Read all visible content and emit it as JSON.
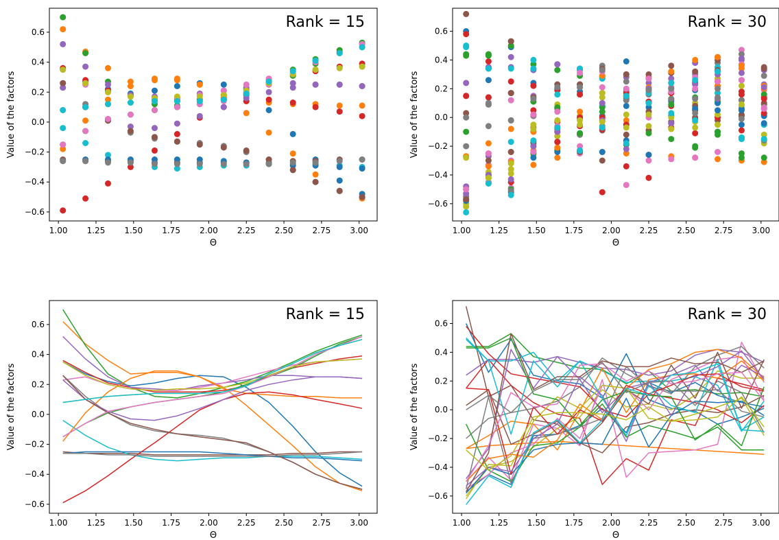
{
  "colors": [
    "#1f77b4",
    "#ff7f0e",
    "#2ca02c",
    "#d62728",
    "#9467bd",
    "#8c564b",
    "#e377c2",
    "#7f7f7f",
    "#bcbd22",
    "#17becf"
  ],
  "chart_data": [
    {
      "type": "scatter",
      "annotation": "Rank = 15",
      "xlabel": "Θ",
      "ylabel": "Value of the factors",
      "xlim": [
        0.94,
        3.12
      ],
      "ylim": [
        -0.66,
        0.76
      ],
      "xticks": [
        "1.00",
        "1.25",
        "1.50",
        "1.75",
        "2.00",
        "2.25",
        "2.50",
        "2.75",
        "3.00"
      ],
      "yticks": [
        "−0.6",
        "−0.4",
        "−0.2",
        "0.0",
        "0.2",
        "0.4",
        "0.6"
      ],
      "x": [
        1.03,
        1.18,
        1.33,
        1.48,
        1.64,
        1.79,
        1.94,
        2.1,
        2.25,
        2.4,
        2.56,
        2.71,
        2.87,
        3.02
      ],
      "series": [
        {
          "values": [
            0.35,
            0.27,
            0.22,
            0.19,
            0.21,
            0.24,
            0.26,
            0.25,
            0.18,
            0.08,
            -0.08,
            -0.25,
            -0.39,
            -0.48
          ]
        },
        {
          "values": [
            0.62,
            0.47,
            0.36,
            0.27,
            0.28,
            0.28,
            0.25,
            0.18,
            0.06,
            -0.07,
            -0.21,
            -0.35,
            -0.46,
            -0.51
          ]
        },
        {
          "values": [
            0.7,
            0.46,
            0.27,
            0.18,
            0.12,
            0.11,
            0.14,
            0.18,
            0.22,
            0.28,
            0.35,
            0.42,
            0.48,
            0.53
          ]
        },
        {
          "values": [
            0.36,
            0.28,
            0.21,
            0.18,
            0.15,
            0.15,
            0.15,
            0.16,
            0.19,
            0.26,
            0.31,
            0.34,
            0.37,
            0.39
          ]
        },
        {
          "values": [
            0.52,
            0.37,
            0.25,
            0.18,
            0.17,
            0.16,
            0.19,
            0.21,
            0.23,
            0.26,
            0.26,
            0.25,
            0.25,
            0.24
          ]
        },
        {
          "values": [
            -0.25,
            -0.26,
            -0.26,
            -0.26,
            -0.27,
            -0.27,
            -0.27,
            -0.27,
            -0.27,
            -0.27,
            -0.26,
            -0.26,
            -0.25,
            -0.25
          ]
        },
        {
          "values": [
            0.23,
            0.25,
            0.2,
            0.17,
            0.16,
            0.16,
            0.18,
            0.21,
            0.25,
            0.29,
            0.33,
            0.35,
            0.36,
            0.37
          ]
        },
        {
          "values": [
            0.26,
            0.12,
            0.01,
            -0.07,
            -0.11,
            -0.13,
            -0.14,
            -0.16,
            -0.2,
            -0.25,
            -0.32,
            -0.4,
            -0.46,
            -0.5
          ]
        },
        {
          "values": [
            0.08,
            0.1,
            0.12,
            0.13,
            0.14,
            0.14,
            0.14,
            0.15,
            0.19,
            0.27,
            0.34,
            0.41,
            0.46,
            0.5
          ]
        },
        {
          "values": [
            -0.04,
            -0.14,
            -0.22,
            -0.27,
            -0.3,
            -0.31,
            -0.3,
            -0.29,
            -0.29,
            -0.28,
            -0.28,
            -0.28,
            -0.29,
            -0.3
          ]
        },
        {
          "values": [
            -0.26,
            -0.25,
            -0.25,
            -0.25,
            -0.25,
            -0.25,
            -0.25,
            -0.26,
            -0.27,
            -0.28,
            -0.29,
            -0.29,
            -0.3,
            -0.31
          ]
        },
        {
          "values": [
            -0.18,
            0.01,
            0.15,
            0.24,
            0.29,
            0.29,
            0.25,
            0.17,
            0.14,
            0.13,
            0.12,
            0.12,
            0.11,
            0.11
          ]
        },
        {
          "values": [
            -0.15,
            -0.06,
            0.01,
            0.05,
            0.08,
            0.1,
            0.12,
            0.15,
            0.2,
            0.25,
            0.31,
            0.39,
            0.47,
            0.52
          ]
        },
        {
          "values": [
            -0.59,
            -0.51,
            -0.41,
            -0.3,
            -0.19,
            -0.08,
            0.03,
            0.1,
            0.14,
            0.15,
            0.13,
            0.1,
            0.07,
            0.04
          ]
        },
        {
          "values": [
            0.23,
            0.1,
            0.02,
            -0.03,
            -0.04,
            -0.01,
            0.04,
            0.1,
            0.16,
            0.2,
            0.23,
            0.25,
            0.25,
            0.24
          ]
        },
        {
          "values": [
            0.26,
            0.1,
            0.01,
            -0.06,
            -0.1,
            -0.13,
            -0.15,
            -0.17,
            -0.19,
            -0.25,
            -0.32,
            -0.4,
            -0.46,
            -0.5
          ]
        },
        {
          "values": [
            -0.15,
            -0.06,
            0.02,
            0.05,
            0.08,
            0.1,
            0.12,
            0.14,
            0.19,
            0.25,
            0.32,
            0.4,
            0.46,
            0.52
          ]
        },
        {
          "values": [
            -0.26,
            -0.26,
            -0.27,
            -0.27,
            -0.28,
            -0.28,
            -0.28,
            -0.28,
            -0.28,
            -0.28,
            -0.27,
            -0.27,
            -0.26,
            -0.25
          ]
        },
        {
          "values": [
            0.35,
            0.26,
            0.2,
            0.17,
            0.16,
            0.17,
            0.17,
            0.18,
            0.21,
            0.26,
            0.32,
            0.35,
            0.36,
            0.37
          ]
        },
        {
          "values": [
            0.08,
            0.1,
            0.12,
            0.13,
            0.14,
            0.14,
            0.14,
            0.15,
            0.19,
            0.27,
            0.34,
            0.41,
            0.46,
            0.5
          ]
        }
      ]
    },
    {
      "type": "scatter",
      "annotation": "Rank = 30",
      "xlabel": "Θ",
      "ylabel": "Value of the factors",
      "xlim": [
        0.94,
        3.12
      ],
      "ylim": [
        -0.72,
        0.76
      ],
      "xticks": [
        "1.00",
        "1.25",
        "1.50",
        "1.75",
        "2.00",
        "2.25",
        "2.50",
        "2.75",
        "3.00"
      ],
      "yticks": [
        "−0.6",
        "−0.4",
        "−0.2",
        "0.0",
        "0.2",
        "0.4",
        "0.6"
      ],
      "x": [
        1.03,
        1.18,
        1.33,
        1.48,
        1.64,
        1.79,
        1.94,
        2.1,
        2.25,
        2.4,
        2.56,
        2.71,
        2.87,
        3.02
      ],
      "series": [
        {
          "values": [
            0.6,
            0.26,
            0.49,
            0.24,
            0.2,
            0.18,
            0.08,
            0.39,
            0.07,
            0.01,
            -0.01,
            -0.1,
            -0.05,
            0.01
          ]
        },
        {
          "values": [
            -0.27,
            -0.25,
            -0.24,
            -0.23,
            -0.22,
            -0.23,
            -0.24,
            -0.25,
            -0.26,
            -0.27,
            -0.28,
            -0.29,
            -0.3,
            -0.31
          ]
        },
        {
          "values": [
            0.44,
            0.44,
            0.53,
            0.37,
            0.33,
            0.29,
            0.28,
            0.18,
            0.27,
            0.13,
            0.14,
            0.11,
            0.12,
            0.09
          ]
        },
        {
          "values": [
            0.15,
            0.35,
            0.17,
            0.05,
            -0.03,
            -0.06,
            -0.52,
            -0.34,
            -0.42,
            -0.07,
            -0.11,
            0.22,
            0.18,
            0.14
          ]
        },
        {
          "values": [
            0.24,
            0.35,
            0.35,
            0.33,
            0.37,
            0.33,
            0.29,
            0.28,
            0.24,
            0.27,
            0.38,
            0.42,
            0.4,
            0.33
          ]
        },
        {
          "values": [
            0.72,
            0.09,
            0.17,
            -0.07,
            -0.1,
            -0.23,
            -0.3,
            -0.12,
            -0.09,
            -0.03,
            0.0,
            -0.02,
            0.02,
            0.1
          ]
        },
        {
          "values": [
            -0.5,
            -0.33,
            -0.49,
            -0.1,
            -0.13,
            -0.25,
            0.21,
            -0.47,
            -0.3,
            -0.29,
            -0.28,
            -0.24,
            0.47,
            0.19
          ]
        },
        {
          "values": [
            -0.2,
            -0.06,
            -0.02,
            0.01,
            0.06,
            0.16,
            0.36,
            0.25,
            0.17,
            0.11,
            0.3,
            0.38,
            0.44,
            0.29
          ]
        },
        {
          "values": [
            -0.6,
            -0.4,
            -0.36,
            -0.26,
            -0.13,
            -0.05,
            0.14,
            0.02,
            0.04,
            0.0,
            0.1,
            0.27,
            0.22,
            0.22
          ]
        },
        {
          "values": [
            0.5,
            0.34,
            0.34,
            0.4,
            0.2,
            0.34,
            0.27,
            0.19,
            0.2,
            0.2,
            0.23,
            0.17,
            -0.15,
            0.06
          ]
        },
        {
          "values": [
            -0.57,
            -0.45,
            -0.52,
            -0.18,
            -0.17,
            -0.11,
            0.01,
            -0.16,
            0.19,
            0.12,
            0.19,
            0.1,
            0.05,
            0.02
          ]
        },
        {
          "values": [
            -0.27,
            -0.18,
            -0.08,
            -0.1,
            -0.28,
            -0.01,
            0.29,
            -0.02,
            0.21,
            0.24,
            0.25,
            0.22,
            0.34,
            0.2
          ]
        },
        {
          "values": [
            -0.1,
            -0.42,
            -0.5,
            -0.25,
            -0.23,
            -0.12,
            0.04,
            -0.19,
            -0.11,
            -0.15,
            -0.2,
            -0.12,
            -0.28,
            -0.28
          ]
        },
        {
          "values": [
            0.58,
            0.39,
            0.25,
            0.22,
            0.19,
            0.16,
            0.0,
            -0.05,
            0.11,
            0.08,
            0.05,
            0.0,
            -0.09,
            0.03
          ]
        },
        {
          "values": [
            -0.48,
            -0.27,
            0.42,
            0.15,
            0.37,
            0.21,
            -0.02,
            0.15,
            0.19,
            0.24,
            0.31,
            0.13,
            0.31,
            0.23
          ]
        },
        {
          "values": [
            0.03,
            0.14,
            -0.24,
            -0.17,
            -0.08,
            -0.24,
            -0.09,
            0.14,
            0.04,
            0.31,
            0.08,
            0.4,
            0.01,
            0.35
          ]
        },
        {
          "values": [
            -0.55,
            -0.45,
            -0.3,
            -0.24,
            -0.06,
            -0.2,
            0.17,
            0.15,
            0.0,
            0.21,
            0.28,
            0.35,
            0.37,
            0.07
          ]
        },
        {
          "values": [
            -0.55,
            0.09,
            -0.51,
            -0.2,
            -0.17,
            -0.12,
            -0.06,
            0.3,
            0.16,
            0.13,
            0.13,
            0.14,
            -0.01,
            -0.05
          ]
        },
        {
          "values": [
            -0.62,
            -0.38,
            -0.39,
            -0.08,
            0.09,
            0.01,
            0.17,
            0.15,
            -0.06,
            -0.08,
            -0.03,
            0.02,
            0.08,
            -0.18
          ]
        },
        {
          "values": [
            0.49,
            0.34,
            -0.17,
            0.34,
            0.16,
            0.34,
            0.08,
            -0.18,
            0.17,
            0.03,
            -0.02,
            0.35,
            -0.14,
            -0.05
          ]
        },
        {
          "values": [
            -0.58,
            -0.4,
            -0.45,
            -0.28,
            -0.24,
            -0.23,
            -0.24,
            0.08,
            -0.26,
            -0.04,
            0.06,
            0.05,
            0.06,
            -0.04
          ]
        },
        {
          "values": [
            -0.5,
            -0.34,
            -0.31,
            -0.33,
            -0.21,
            0.04,
            -0.07,
            0.15,
            0.28,
            0.32,
            0.4,
            0.42,
            0.36,
            0.22
          ]
        },
        {
          "values": [
            0.43,
            0.43,
            0.5,
            0.11,
            0.07,
            -0.11,
            0.07,
            0.13,
            0.1,
            0.09,
            -0.21,
            -0.1,
            -0.25,
            0.16
          ]
        },
        {
          "values": [
            0.15,
            0.14,
            -0.45,
            0.02,
            -0.17,
            0.0,
            -0.08,
            0.17,
            0.11,
            0.17,
            0.24,
            0.25,
            0.16,
            0.13
          ]
        },
        {
          "values": [
            -0.53,
            -0.4,
            -0.43,
            -0.2,
            -0.1,
            0.23,
            0.1,
            -0.22,
            0.2,
            -0.04,
            0.23,
            0.3,
            0.41,
            0.21
          ]
        },
        {
          "values": [
            -0.57,
            -0.3,
            0.53,
            0.14,
            0.23,
            0.23,
            0.34,
            0.3,
            0.3,
            0.36,
            0.32,
            0.33,
            0.26,
            0.34
          ]
        },
        {
          "values": [
            -0.5,
            -0.25,
            0.12,
            0.02,
            0.04,
            0.31,
            0.32,
            0.2,
            0.27,
            0.18,
            0.2,
            0.25,
            0.26,
            0.06
          ]
        },
        {
          "values": [
            0.0,
            0.1,
            -0.02,
            0.13,
            0.21,
            0.21,
            0.33,
            0.12,
            0.19,
            0.2,
            0.03,
            0.2,
            0.12,
            -0.16
          ]
        },
        {
          "values": [
            -0.28,
            -0.42,
            -0.32,
            -0.05,
            -0.02,
            -0.02,
            -0.03,
            -0.07,
            0.02,
            -0.08,
            -0.07,
            -0.05,
            0.09,
            -0.12
          ]
        },
        {
          "values": [
            -0.66,
            -0.46,
            -0.54,
            -0.16,
            -0.07,
            -0.23,
            -0.07,
            0.15,
            0.1,
            0.24,
            0.26,
            0.32,
            -0.14,
            -0.15
          ]
        }
      ]
    },
    {
      "type": "line",
      "annotation": "Rank = 15",
      "xlabel": "Θ",
      "ylabel": "Value of the factors",
      "xlim": [
        0.94,
        3.12
      ],
      "ylim": [
        -0.66,
        0.76
      ],
      "xticks": [
        "1.00",
        "1.25",
        "1.50",
        "1.75",
        "2.00",
        "2.25",
        "2.50",
        "2.75",
        "3.00"
      ],
      "yticks": [
        "−0.6",
        "−0.4",
        "−0.2",
        "0.0",
        "0.2",
        "0.4",
        "0.6"
      ],
      "x": [
        1.03,
        1.18,
        1.33,
        1.48,
        1.64,
        1.79,
        1.94,
        2.1,
        2.25,
        2.4,
        2.56,
        2.71,
        2.87,
        3.02
      ],
      "series": "same as Rank = 15 scatter"
    },
    {
      "type": "line",
      "annotation": "Rank = 30",
      "xlabel": "Θ",
      "ylabel": "Value of the factors",
      "xlim": [
        0.94,
        3.12
      ],
      "ylim": [
        -0.72,
        0.76
      ],
      "xticks": [
        "1.00",
        "1.25",
        "1.50",
        "1.75",
        "2.00",
        "2.25",
        "2.50",
        "2.75",
        "3.00"
      ],
      "yticks": [
        "−0.6",
        "−0.4",
        "−0.2",
        "0.0",
        "0.2",
        "0.4",
        "0.6"
      ],
      "x": [
        1.03,
        1.18,
        1.33,
        1.48,
        1.64,
        1.79,
        1.94,
        2.1,
        2.25,
        2.4,
        2.56,
        2.71,
        2.87,
        3.02
      ],
      "series": "same as Rank = 30 scatter"
    }
  ]
}
